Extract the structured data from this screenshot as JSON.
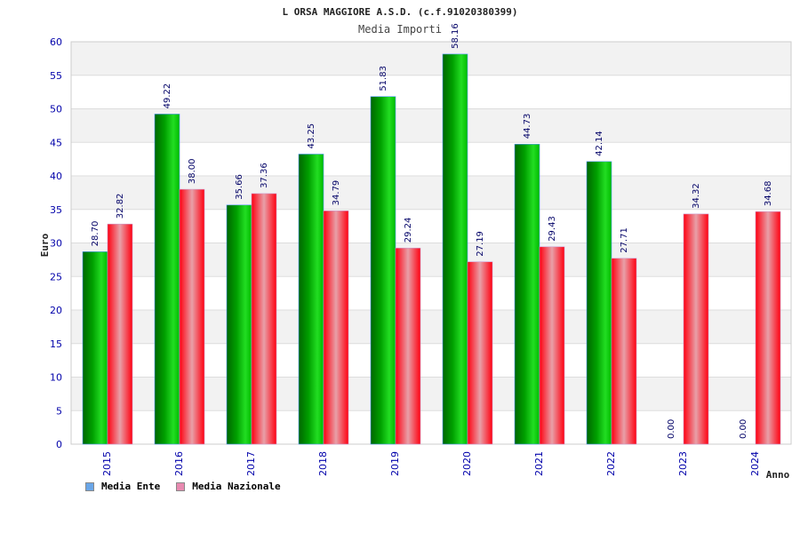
{
  "chart_data": {
    "type": "bar",
    "title": "L ORSA MAGGIORE A.S.D. (c.f.91020380399)",
    "subtitle": "Media Importi",
    "xlabel": "Anno",
    "ylabel": "Euro",
    "ylim": [
      0,
      60
    ],
    "yticks": [
      "0",
      "5",
      "10",
      "15",
      "20",
      "25",
      "30",
      "35",
      "40",
      "45",
      "50",
      "55",
      "60"
    ],
    "categories": [
      "2015",
      "2016",
      "2017",
      "2018",
      "2019",
      "2020",
      "2021",
      "2022",
      "2023",
      "2024"
    ],
    "series": [
      {
        "name": "Media Ente",
        "color": "#00a000",
        "values": [
          28.7,
          49.22,
          35.66,
          43.25,
          51.83,
          58.16,
          44.73,
          42.14,
          0.0,
          0.0
        ],
        "labels": [
          "28.70",
          "49.22",
          "35.66",
          "43.25",
          "51.83",
          "58.16",
          "44.73",
          "42.14",
          "0.00",
          "0.00"
        ]
      },
      {
        "name": "Media Nazionale",
        "color": "#ee1122",
        "values": [
          32.82,
          38.0,
          37.36,
          34.79,
          29.24,
          27.19,
          29.43,
          27.71,
          34.32,
          34.68
        ],
        "labels": [
          "32.82",
          "38.00",
          "37.36",
          "34.79",
          "29.24",
          "27.19",
          "29.43",
          "27.71",
          "34.32",
          "34.68"
        ]
      }
    ],
    "grid": true,
    "legend_position": "bottom-left",
    "legend_colors": [
      "#6aa6e8",
      "#e88ab0"
    ]
  }
}
